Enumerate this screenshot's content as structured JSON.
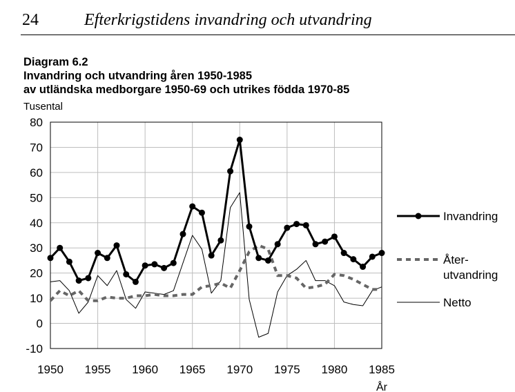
{
  "page": {
    "page_number": "24",
    "running_title": "Efterkrigstidens invandring och utvandring"
  },
  "figure": {
    "label": "Diagram 6.2",
    "title_line1": "Invandring och utvandring åren 1950-1985",
    "title_line2": "av utländska medborgare 1950-69 och utrikes födda 1970-85",
    "unit": "Tusental"
  },
  "chart_data": {
    "type": "line",
    "title": "Invandring och utvandring åren 1950-1985 av utländska medborgare 1950-69 och utrikes födda 1970-85",
    "xlabel": "År",
    "ylabel": "Tusental",
    "xlim": [
      1950,
      1985
    ],
    "ylim": [
      -10,
      80
    ],
    "grid": true,
    "legend_position": "right",
    "x_ticks": [
      "1950",
      "1955",
      "1960",
      "1965",
      "1970",
      "1975",
      "1980",
      "1985"
    ],
    "y_ticks": [
      "80",
      "70",
      "60",
      "50",
      "40",
      "30",
      "20",
      "10",
      "0",
      "-10"
    ],
    "x": [
      1950,
      1951,
      1952,
      1953,
      1954,
      1955,
      1956,
      1957,
      1958,
      1959,
      1960,
      1961,
      1962,
      1963,
      1964,
      1965,
      1966,
      1967,
      1968,
      1969,
      1970,
      1971,
      1972,
      1973,
      1974,
      1975,
      1976,
      1977,
      1978,
      1979,
      1980,
      1981,
      1982,
      1983,
      1984,
      1985
    ],
    "series": [
      {
        "name": "Invandring",
        "style": "thick-markers",
        "color": "#000000",
        "values": [
          26,
          30,
          24.5,
          17,
          18,
          28,
          26,
          31,
          19.5,
          16.5,
          23,
          23.5,
          22,
          24,
          35.5,
          46.5,
          44,
          27,
          33,
          60.5,
          73,
          38.5,
          26,
          25,
          31.5,
          38,
          39.5,
          39,
          31.5,
          32.5,
          34.5,
          28,
          25.5,
          22.5,
          26.5,
          28
        ]
      },
      {
        "name": "Åter-\nutvandring",
        "legend_lines": [
          "Åter-",
          "utvandring"
        ],
        "style": "dashed",
        "color": "#666666",
        "values": [
          9,
          13,
          11,
          13,
          9,
          9,
          10.5,
          10,
          10,
          11,
          11,
          11.5,
          11,
          11,
          11.5,
          11.5,
          14.5,
          15,
          16,
          14,
          21,
          28.5,
          31,
          29.5,
          19,
          19,
          18,
          14,
          14.5,
          15.5,
          19.5,
          19,
          17.5,
          15.5,
          13.5,
          13.5
        ]
      },
      {
        "name": "Netto",
        "style": "thin",
        "color": "#000000",
        "values": [
          16.5,
          17,
          13,
          4,
          8.5,
          19,
          15,
          21,
          9.5,
          6,
          12.5,
          12,
          11.5,
          13,
          24,
          35,
          29.5,
          12,
          17,
          46,
          52,
          9.5,
          -5.5,
          -4,
          12.5,
          19,
          21.5,
          25,
          17,
          17,
          15,
          8.5,
          7.5,
          7,
          13,
          14.5
        ]
      }
    ]
  }
}
